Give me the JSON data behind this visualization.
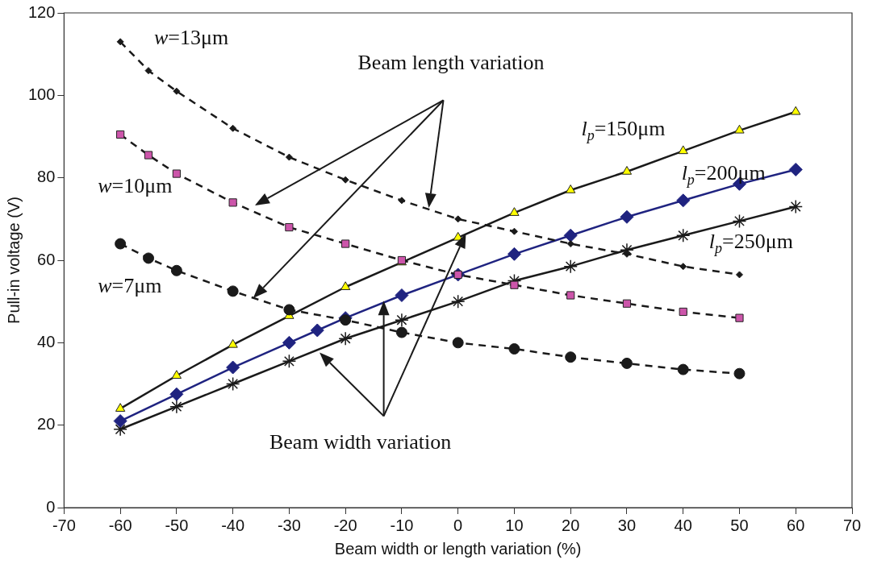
{
  "chart_data": {
    "type": "line",
    "xlabel": "Beam width or length variation (%)",
    "ylabel": "Pull-in voltage (V)",
    "xlim": [
      -70,
      70
    ],
    "xticks": [
      -70,
      -60,
      -50,
      -40,
      -30,
      -20,
      -10,
      0,
      10,
      20,
      30,
      40,
      50,
      60,
      70
    ],
    "ylim": [
      0,
      120
    ],
    "yticks": [
      0,
      20,
      40,
      60,
      80,
      100,
      120
    ],
    "grid": false,
    "legend": false,
    "annotations": [
      "Beam length variation",
      "Beam width variation"
    ],
    "series": [
      {
        "name": "w=13μm",
        "color": "#1a1a1a",
        "marker": "diamond",
        "line_style": "dashed",
        "x": [
          -60,
          -55,
          -50,
          -40,
          -30,
          -20,
          -10,
          0,
          10,
          20,
          30,
          40,
          50
        ],
        "values": [
          113,
          106,
          101,
          92,
          85,
          79.5,
          74.5,
          70,
          67,
          64,
          61.5,
          58.5,
          56.5
        ]
      },
      {
        "name": "w=10μm",
        "color": "#cc55aa",
        "marker": "square",
        "line_style": "dashed",
        "x": [
          -60,
          -55,
          -50,
          -40,
          -30,
          -20,
          -10,
          0,
          10,
          20,
          30,
          40,
          50
        ],
        "values": [
          90.5,
          85.5,
          81,
          74,
          68,
          64,
          60,
          56.5,
          54,
          51.5,
          49.5,
          47.5,
          46
        ]
      },
      {
        "name": "w=7μm",
        "color": "#1a1a1a",
        "marker": "circle",
        "line_style": "dashed",
        "x": [
          -60,
          -55,
          -50,
          -40,
          -30,
          -20,
          -10,
          0,
          10,
          20,
          30,
          40,
          50
        ],
        "values": [
          64,
          60.5,
          57.5,
          52.5,
          48,
          45.5,
          42.5,
          40,
          38.5,
          36.5,
          35,
          33.5,
          32.5
        ]
      },
      {
        "name": "l$_{p}$=150μm",
        "color": "#ffff00",
        "marker": "triangle",
        "line_style": "solid",
        "x": [
          -60,
          -50,
          -40,
          -30,
          -20,
          -10,
          0,
          10,
          20,
          30,
          40,
          50,
          60
        ],
        "values": [
          24,
          32,
          39.5,
          46.5,
          53.5,
          59.5,
          65.5,
          71.5,
          77,
          81.5,
          86.5,
          91.5,
          96
        ]
      },
      {
        "name": "l$_{p}$=200μm",
        "color": "#1f2380",
        "marker": "diamond",
        "line_style": "solid",
        "x": [
          -60,
          -50,
          -40,
          -30,
          -25,
          -20,
          -10,
          0,
          10,
          20,
          30,
          40,
          50,
          60
        ],
        "values": [
          21,
          27.5,
          34,
          40,
          43,
          46,
          51.5,
          56.5,
          61.5,
          66,
          70.5,
          74.5,
          78.5,
          82
        ]
      },
      {
        "name": "l$_{p}$=250μm",
        "color": "#1a1a1a",
        "marker": "cross",
        "line_style": "solid",
        "x": [
          -60,
          -50,
          -40,
          -30,
          -20,
          -10,
          0,
          10,
          20,
          30,
          40,
          50,
          60
        ],
        "values": [
          19,
          24.5,
          30,
          35.5,
          41,
          45.5,
          50,
          55,
          58.5,
          62.5,
          66,
          69.5,
          73
        ]
      }
    ]
  }
}
